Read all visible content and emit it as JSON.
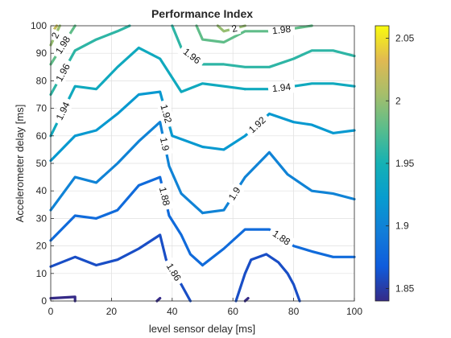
{
  "chart_data": {
    "type": "contour",
    "title": "Performance Index",
    "xlabel": "level sensor delay [ms]",
    "ylabel": "Accelerometer delay [ms]",
    "xlim": [
      0,
      100
    ],
    "ylim": [
      0,
      100
    ],
    "xticks": [
      0,
      20,
      40,
      60,
      80,
      100
    ],
    "yticks": [
      0,
      10,
      20,
      30,
      40,
      50,
      60,
      70,
      80,
      90,
      100
    ],
    "grid": true,
    "colormap": "parula",
    "colorbar": {
      "range": [
        1.84,
        2.06
      ],
      "ticks": [
        "1.85",
        "1.9",
        "1.95",
        "2",
        "2.05"
      ],
      "tick_values": [
        1.85,
        1.9,
        1.95,
        2.0,
        2.05
      ]
    },
    "levels": [
      {
        "level": 1.84,
        "label": "",
        "points": [
          [
            0,
            1
          ],
          [
            8,
            1.5
          ],
          [
            8,
            0
          ]
        ]
      },
      {
        "level": 1.84,
        "label": "",
        "points": [
          [
            35,
            0
          ],
          [
            36,
            1
          ]
        ]
      },
      {
        "level": 1.84,
        "label": "",
        "points": [
          [
            64,
            0
          ],
          [
            65,
            1
          ]
        ]
      },
      {
        "level": 1.86,
        "label": "1.86",
        "points": [
          [
            0,
            12.5
          ],
          [
            8,
            16
          ],
          [
            15,
            13
          ],
          [
            22,
            15
          ],
          [
            29,
            19
          ],
          [
            36,
            24
          ],
          [
            38,
            15
          ],
          [
            43,
            6
          ],
          [
            46,
            0
          ]
        ]
      },
      {
        "level": 1.86,
        "label": "",
        "points": [
          [
            61,
            0
          ],
          [
            64,
            10
          ],
          [
            66,
            15
          ],
          [
            71,
            17
          ],
          [
            75,
            14
          ],
          [
            78,
            10
          ],
          [
            80,
            6
          ],
          [
            82,
            0
          ]
        ]
      },
      {
        "level": 1.88,
        "label": "1.88",
        "points": [
          [
            0,
            22
          ],
          [
            8,
            31
          ],
          [
            15,
            30
          ],
          [
            22,
            33
          ],
          [
            29,
            42
          ],
          [
            36,
            45
          ],
          [
            39,
            31
          ],
          [
            43,
            24
          ],
          [
            46,
            17
          ],
          [
            50,
            13
          ]
        ]
      },
      {
        "level": 1.88,
        "label": "1.88",
        "points": [
          [
            50,
            13
          ],
          [
            57,
            19
          ],
          [
            64,
            26
          ],
          [
            72,
            26
          ],
          [
            80,
            20
          ],
          [
            86,
            18
          ],
          [
            93,
            16
          ],
          [
            100,
            16
          ]
        ]
      },
      {
        "level": 1.9,
        "label": "1.9",
        "points": [
          [
            0,
            33
          ],
          [
            8,
            45
          ],
          [
            15,
            43
          ],
          [
            22,
            50
          ],
          [
            29,
            58
          ],
          [
            36,
            65
          ],
          [
            39,
            49
          ],
          [
            43,
            39
          ],
          [
            50,
            32
          ]
        ]
      },
      {
        "level": 1.9,
        "label": "1.9",
        "points": [
          [
            50,
            32
          ],
          [
            57,
            33
          ],
          [
            64,
            45
          ],
          [
            72,
            54
          ],
          [
            78,
            46
          ],
          [
            86,
            40
          ],
          [
            93,
            39
          ],
          [
            100,
            37
          ]
        ]
      },
      {
        "level": 1.92,
        "label": "1.92",
        "points": [
          [
            0,
            51
          ],
          [
            8,
            60
          ],
          [
            15,
            62
          ],
          [
            22,
            68
          ],
          [
            29,
            75
          ],
          [
            36,
            76
          ],
          [
            40,
            60
          ],
          [
            50,
            56
          ],
          [
            57,
            55
          ],
          [
            64,
            60
          ]
        ]
      },
      {
        "level": 1.92,
        "label": "1.92",
        "points": [
          [
            64,
            60
          ],
          [
            72,
            68
          ],
          [
            80,
            65
          ],
          [
            86,
            64
          ],
          [
            93,
            61
          ],
          [
            100,
            62
          ]
        ]
      },
      {
        "level": 1.94,
        "label": "1.94",
        "points": [
          [
            0,
            60
          ],
          [
            8,
            78
          ],
          [
            15,
            77
          ],
          [
            22,
            85
          ],
          [
            29,
            92
          ],
          [
            36,
            88
          ],
          [
            43,
            76
          ],
          [
            50,
            79
          ],
          [
            57,
            78
          ],
          [
            64,
            77
          ]
        ]
      },
      {
        "level": 1.94,
        "label": "1.94",
        "points": [
          [
            64,
            77
          ],
          [
            72,
            77
          ],
          [
            80,
            78
          ],
          [
            86,
            79
          ],
          [
            93,
            79
          ],
          [
            100,
            78
          ]
        ]
      },
      {
        "level": 1.96,
        "label": "1.96",
        "points": [
          [
            0,
            75
          ],
          [
            8,
            91
          ],
          [
            15,
            95
          ],
          [
            22,
            98
          ],
          [
            26,
            100
          ]
        ]
      },
      {
        "level": 1.96,
        "label": "1.96",
        "points": [
          [
            40,
            100
          ],
          [
            43,
            92
          ],
          [
            50,
            86
          ],
          [
            57,
            86
          ],
          [
            64,
            85
          ],
          [
            72,
            85
          ],
          [
            80,
            88
          ],
          [
            86,
            91
          ],
          [
            93,
            91
          ],
          [
            100,
            89
          ]
        ]
      },
      {
        "level": 1.98,
        "label": "1.98",
        "points": [
          [
            0,
            86
          ],
          [
            8,
            100
          ]
        ]
      },
      {
        "level": 1.98,
        "label": "1.98",
        "points": [
          [
            48,
            100
          ],
          [
            50,
            95
          ],
          [
            57,
            94
          ],
          [
            64,
            98
          ],
          [
            72,
            98
          ],
          [
            80,
            99
          ],
          [
            86,
            100
          ]
        ]
      },
      {
        "level": 2.0,
        "label": "2",
        "points": [
          [
            0,
            93
          ],
          [
            3,
            100
          ]
        ]
      },
      {
        "level": 2.0,
        "label": "2",
        "points": [
          [
            55,
            100
          ],
          [
            57,
            98
          ],
          [
            64,
            100
          ]
        ]
      },
      {
        "level": 2.02,
        "label": "",
        "points": [
          [
            0,
            97
          ],
          [
            2,
            100
          ]
        ]
      }
    ]
  }
}
